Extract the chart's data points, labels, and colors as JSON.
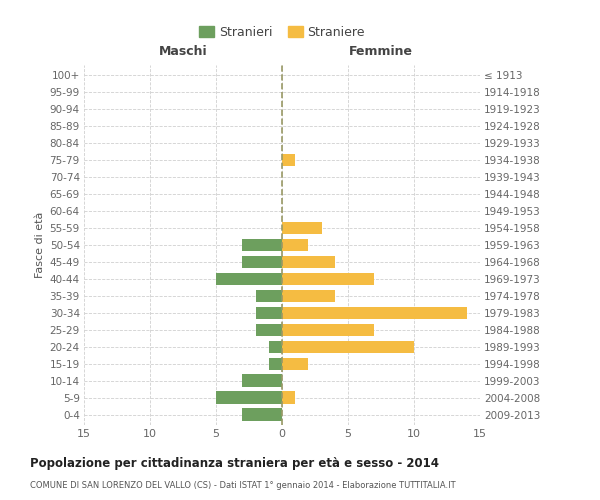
{
  "age_groups": [
    "0-4",
    "5-9",
    "10-14",
    "15-19",
    "20-24",
    "25-29",
    "30-34",
    "35-39",
    "40-44",
    "45-49",
    "50-54",
    "55-59",
    "60-64",
    "65-69",
    "70-74",
    "75-79",
    "80-84",
    "85-89",
    "90-94",
    "95-99",
    "100+"
  ],
  "birth_years": [
    "2009-2013",
    "2004-2008",
    "1999-2003",
    "1994-1998",
    "1989-1993",
    "1984-1988",
    "1979-1983",
    "1974-1978",
    "1969-1973",
    "1964-1968",
    "1959-1963",
    "1954-1958",
    "1949-1953",
    "1944-1948",
    "1939-1943",
    "1934-1938",
    "1929-1933",
    "1924-1928",
    "1919-1923",
    "1914-1918",
    "≤ 1913"
  ],
  "maschi": [
    3,
    5,
    3,
    1,
    1,
    2,
    2,
    2,
    5,
    3,
    3,
    0,
    0,
    0,
    0,
    0,
    0,
    0,
    0,
    0,
    0
  ],
  "femmine": [
    0,
    1,
    0,
    2,
    10,
    7,
    14,
    4,
    7,
    4,
    2,
    3,
    0,
    0,
    0,
    1,
    0,
    0,
    0,
    0,
    0
  ],
  "male_color": "#6d9f5e",
  "female_color": "#f5bc42",
  "title": "Popolazione per cittadinanza straniera per età e sesso - 2014",
  "subtitle": "COMUNE DI SAN LORENZO DEL VALLO (CS) - Dati ISTAT 1° gennaio 2014 - Elaborazione TUTTITALIA.IT",
  "xlabel_left": "Maschi",
  "xlabel_right": "Femmine",
  "ylabel_left": "Fasce di età",
  "legend_male": "Stranieri",
  "legend_female": "Straniere",
  "xlim": 15,
  "background_color": "#ffffff",
  "grid_color": "#d0d0d0",
  "bar_height": 0.75,
  "text_color": "#666666",
  "separator_color": "#999966",
  "title_color": "#222222",
  "subtitle_color": "#555555"
}
